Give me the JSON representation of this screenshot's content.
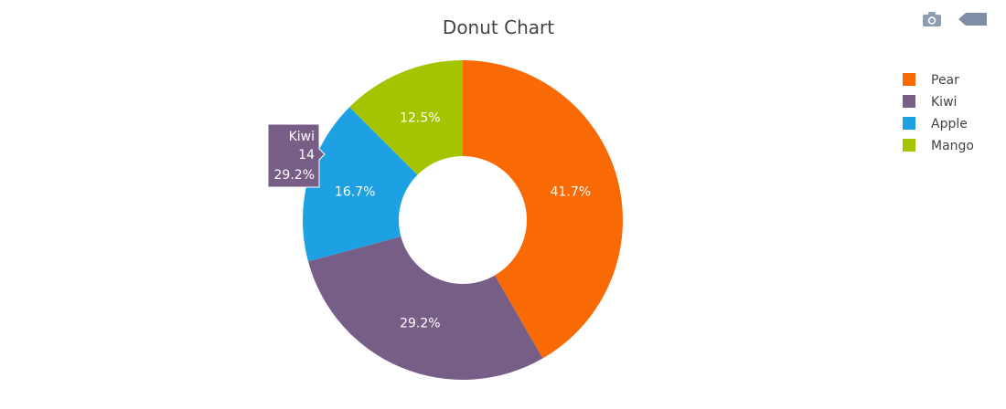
{
  "chart_data": {
    "type": "pie",
    "hole": true,
    "title": "Donut Chart",
    "labels": [
      "Pear",
      "Kiwi",
      "Apple",
      "Mango"
    ],
    "values": [
      20,
      14,
      8,
      6
    ],
    "percent_labels": [
      "41.7%",
      "29.2%",
      "16.7%",
      "12.5%"
    ],
    "colors": [
      "#f96a05",
      "#775e87",
      "#1da1e2",
      "#a5c400"
    ],
    "direction": "clockwise",
    "legend_position": "top-right",
    "hover": {
      "label": "Kiwi",
      "value": "14",
      "percent": "29.2%"
    }
  },
  "modebar": {
    "camera_icon": "camera-icon",
    "logo_icon": "plotly-logo-icon"
  }
}
